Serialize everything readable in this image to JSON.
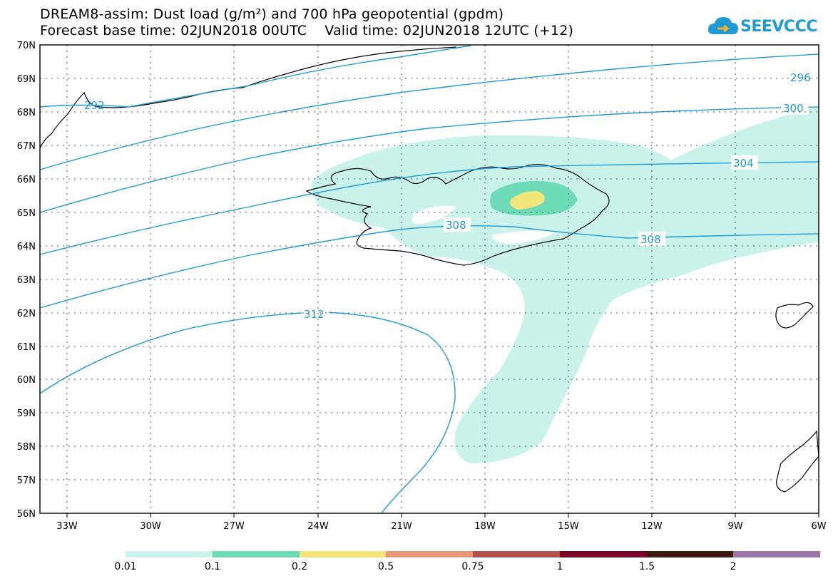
{
  "header": {
    "title_line1": "DREAM8-assim: Dust load (g/m²) and 700 hPa geopotential (gpdm)",
    "title_line2": "Forecast base time: 02JUN2018 00UTC    Valid time: 02JUN2018 12UTC (+12)"
  },
  "logo": {
    "text": "SEEVCCC",
    "icon": "cloud-icon",
    "color": "#1e9bd7"
  },
  "map": {
    "lat_range": [
      56,
      70
    ],
    "lon_range": [
      -34.5,
      -6
    ],
    "lat_labels": [
      "70N",
      "69N",
      "68N",
      "67N",
      "66N",
      "65N",
      "64N",
      "63N",
      "62N",
      "61N",
      "60N",
      "59N",
      "58N",
      "57N",
      "56N"
    ],
    "lon_labels": [
      "33W",
      "30W",
      "27W",
      "24W",
      "21W",
      "18W",
      "15W",
      "12W",
      "9W",
      "6W"
    ],
    "contour_color": "#1e9bd7",
    "contour_labels": [
      "296",
      "300",
      "304",
      "308",
      "308",
      "312",
      "292"
    ],
    "dust_colors": {
      "low": "#c8f2ea",
      "mid": "#6ddbb8",
      "high": "#f2e57a"
    }
  },
  "legend": {
    "thresholds": [
      "0.01",
      "0.1",
      "0.2",
      "0.5",
      "0.75",
      "1",
      "1.5",
      "2"
    ],
    "colors": [
      "#c8f2ea",
      "#6ddbb8",
      "#f2e57a",
      "#e9977a",
      "#b04f4c",
      "#7a0029",
      "#3d1a10",
      "#9a76a8"
    ]
  }
}
